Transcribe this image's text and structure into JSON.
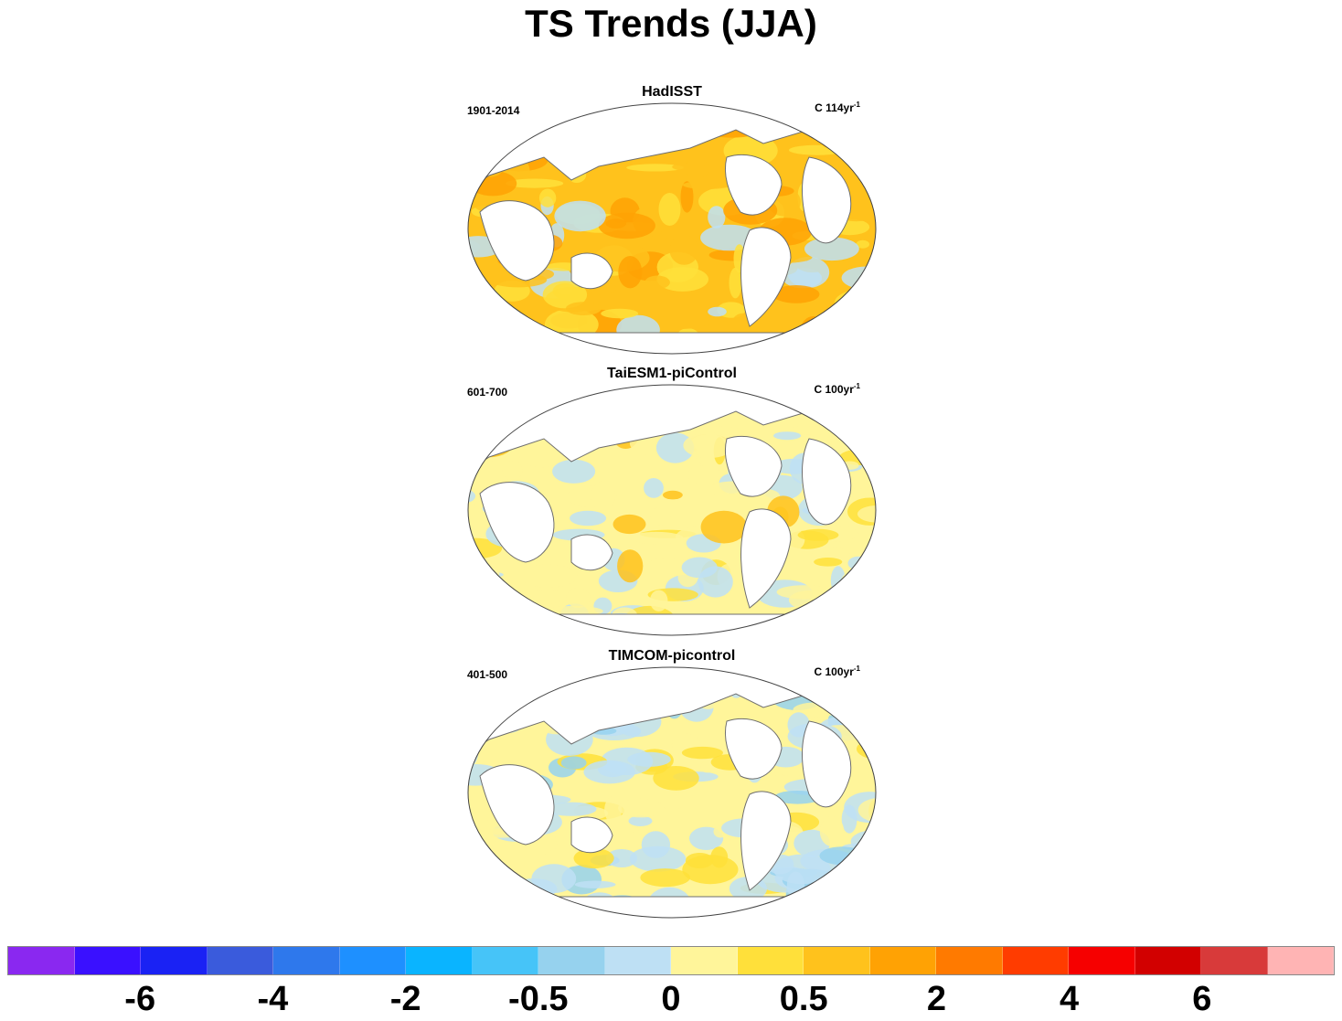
{
  "title": "TS Trends (JJA)",
  "panels": [
    {
      "title": "HadISST",
      "period": "1901-2014",
      "units": "C 114yr",
      "units_sup": "-1",
      "pattern": "warm"
    },
    {
      "title": "TaiESM1-piControl",
      "period": "601-700",
      "units": "C 100yr",
      "units_sup": "-1",
      "pattern": "mixed"
    },
    {
      "title": "TIMCOM-picontrol",
      "period": "401-500",
      "units": "C 100yr",
      "units_sup": "-1",
      "pattern": "cool"
    }
  ],
  "colorbar": {
    "colors": [
      "#8A28F0",
      "#3A10FF",
      "#1A22F4",
      "#3A5BDC",
      "#2E78EC",
      "#1E90FF",
      "#0AB4FF",
      "#46C4F8",
      "#96D2EE",
      "#BEE0F4",
      "#FFF59A",
      "#FFE03A",
      "#FFC21C",
      "#FFA204",
      "#FF7A00",
      "#FF3C00",
      "#F60000",
      "#D20000",
      "#D83A3A",
      "#FFB4B4"
    ],
    "labels": [
      "-6",
      "-4",
      "-2",
      "-0.5",
      "0",
      "0.5",
      "2",
      "4",
      "6"
    ]
  },
  "land_color": "#ffffff",
  "coast_color": "#6e6e6e"
}
